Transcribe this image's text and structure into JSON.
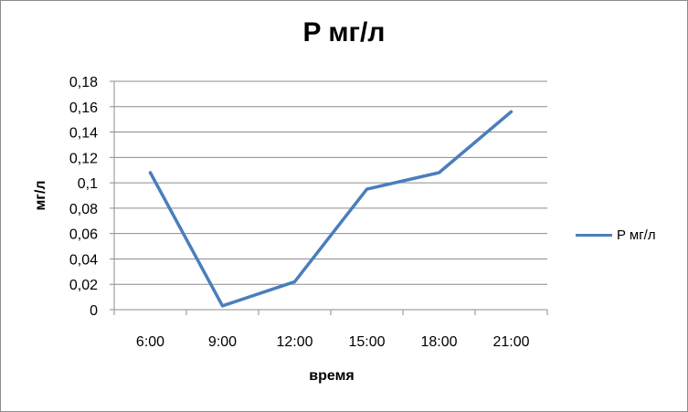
{
  "chart_data": {
    "type": "line",
    "title": "P мг/л",
    "xlabel": "время",
    "ylabel": "мг/л",
    "categories": [
      "6:00",
      "9:00",
      "12:00",
      "15:00",
      "18:00",
      "21:00"
    ],
    "series": [
      {
        "name": "P мг/л",
        "values": [
          0.108,
          0.003,
          0.022,
          0.095,
          0.108,
          0.156
        ],
        "color": "#4a7ebb"
      }
    ],
    "ylim": [
      0,
      0.18
    ],
    "yticks": [
      "0",
      "0,02",
      "0,04",
      "0,06",
      "0,08",
      "0,1",
      "0,12",
      "0,14",
      "0,16",
      "0,18"
    ],
    "grid": "horizontal",
    "legend_position": "right"
  }
}
